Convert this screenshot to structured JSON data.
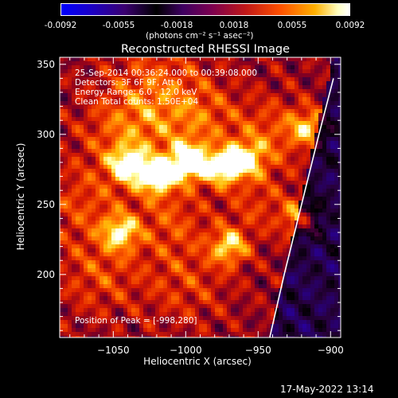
{
  "colorbar": {
    "ticks": [
      "-0.0092",
      "-0.0055",
      "-0.0018",
      "0.0018",
      "0.0055",
      "0.0092"
    ],
    "unit_label": "(photons cm⁻² s⁻¹ asec⁻²)",
    "range": [
      -0.0092,
      0.0092
    ]
  },
  "annotations": {
    "line1": "25-Sep-2014 00:36:24.000 to 00:39:08.000",
    "line2": "Detectors: 3F 6F 9F, Att 0",
    "line3": "Energy Range: 6.0 - 12.0 keV",
    "line4": "Clean     Total counts: 1.50E+04",
    "peak": "Position of Peak = [-998,280]"
  },
  "timestamp": "17-May-2022 13:14",
  "chart_data": {
    "type": "heatmap",
    "title": "Reconstructed RHESSI Image",
    "xlabel": "Heliocentric X (arcsec)",
    "ylabel": "Heliocentric Y (arcsec)",
    "xlim": [
      -1087,
      -893
    ],
    "ylim": [
      155,
      355
    ],
    "x_ticks": [
      -1050,
      -1000,
      -950,
      -900
    ],
    "y_ticks": [
      200,
      250,
      300,
      350
    ],
    "x_tick_labels": [
      "−1050",
      "−1000",
      "−950",
      "−900"
    ],
    "y_tick_labels": [
      "200",
      "250",
      "300",
      "350"
    ],
    "peak": [
      -998,
      280
    ],
    "colormap": "rhessi-diverging",
    "bright_sources": [
      {
        "x": -998,
        "y": 280,
        "value": 0.0092
      },
      {
        "x": -1020,
        "y": 270,
        "value": 0.0075
      },
      {
        "x": -975,
        "y": 276,
        "value": 0.0068
      },
      {
        "x": -1040,
        "y": 278,
        "value": 0.0062
      },
      {
        "x": -958,
        "y": 282,
        "value": 0.006
      },
      {
        "x": -1045,
        "y": 230,
        "value": 0.0058
      },
      {
        "x": -970,
        "y": 220,
        "value": 0.0057
      },
      {
        "x": -920,
        "y": 240,
        "value": 0.005
      },
      {
        "x": -915,
        "y": 305,
        "value": 0.0048
      }
    ],
    "limb_curve": [
      [
        -942,
        155
      ],
      [
        -932,
        200
      ],
      [
        -920,
        250
      ],
      [
        -908,
        300
      ],
      [
        -898,
        340
      ]
    ],
    "grid": false
  }
}
